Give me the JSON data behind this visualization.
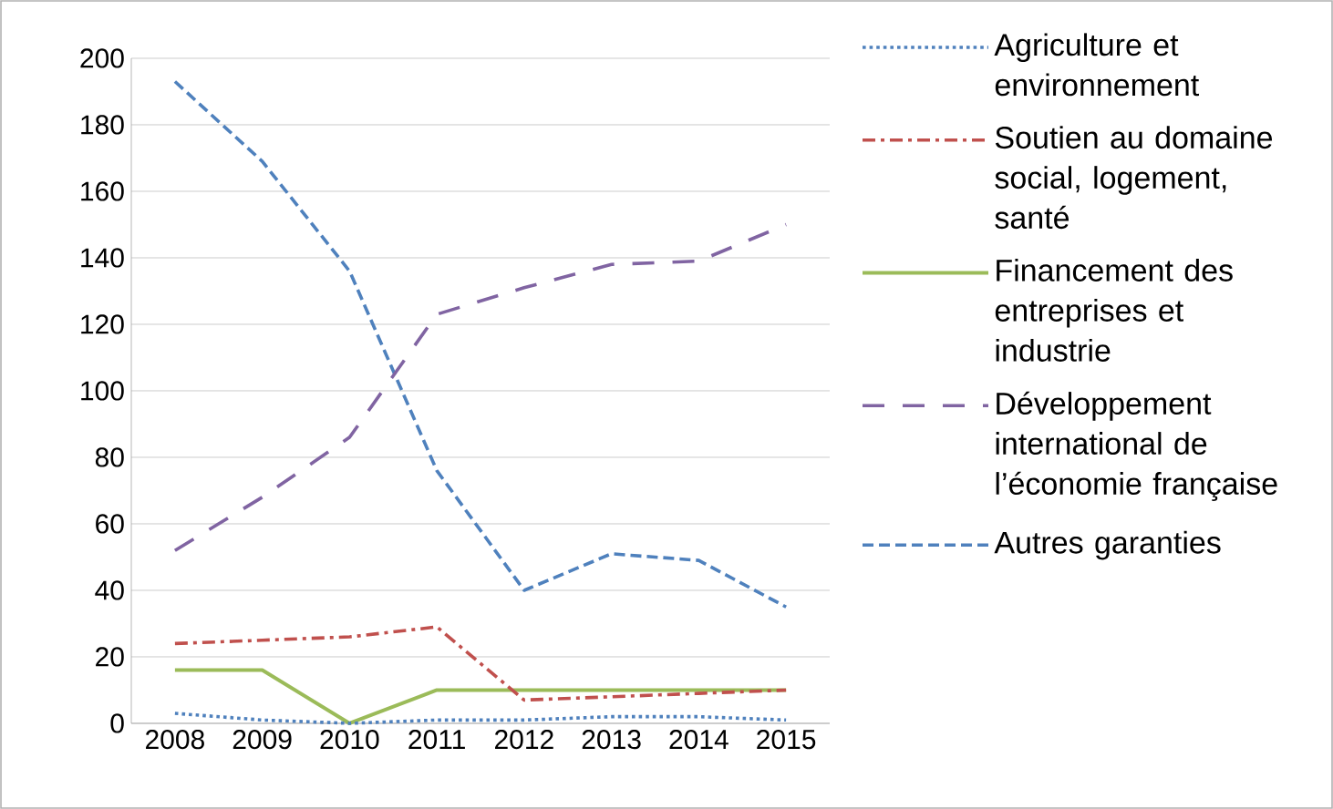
{
  "chart_data": {
    "type": "line",
    "categories": [
      "2008",
      "2009",
      "2010",
      "2011",
      "2012",
      "2013",
      "2014",
      "2015"
    ],
    "series": [
      {
        "name": "Agriculture et environnement",
        "color": "#4f81bd",
        "line_style": "dotted",
        "values": [
          3,
          1,
          0,
          1,
          1,
          2,
          2,
          1
        ]
      },
      {
        "name": "Soutien au domaine social, logement, santé",
        "color": "#c0504d",
        "line_style": "dashdot",
        "values": [
          24,
          25,
          26,
          29,
          7,
          8,
          9,
          10
        ]
      },
      {
        "name": "Financement des entreprises et industrie",
        "color": "#9bbb59",
        "line_style": "solid",
        "values": [
          16,
          16,
          0,
          10,
          10,
          10,
          10,
          10
        ]
      },
      {
        "name": "Développement international de l’économie française",
        "color": "#8064a2",
        "line_style": "longdash",
        "values": [
          52,
          68,
          86,
          123,
          131,
          138,
          139,
          150
        ]
      },
      {
        "name": "Autres garanties",
        "color": "#4f81bd",
        "line_style": "dashed",
        "values": [
          193,
          169,
          136,
          76,
          40,
          51,
          49,
          35
        ]
      }
    ],
    "ylim": [
      0,
      200
    ],
    "yticks": [
      0,
      20,
      40,
      60,
      80,
      100,
      120,
      140,
      160,
      180,
      200
    ],
    "grid": "y",
    "legend": "right"
  }
}
